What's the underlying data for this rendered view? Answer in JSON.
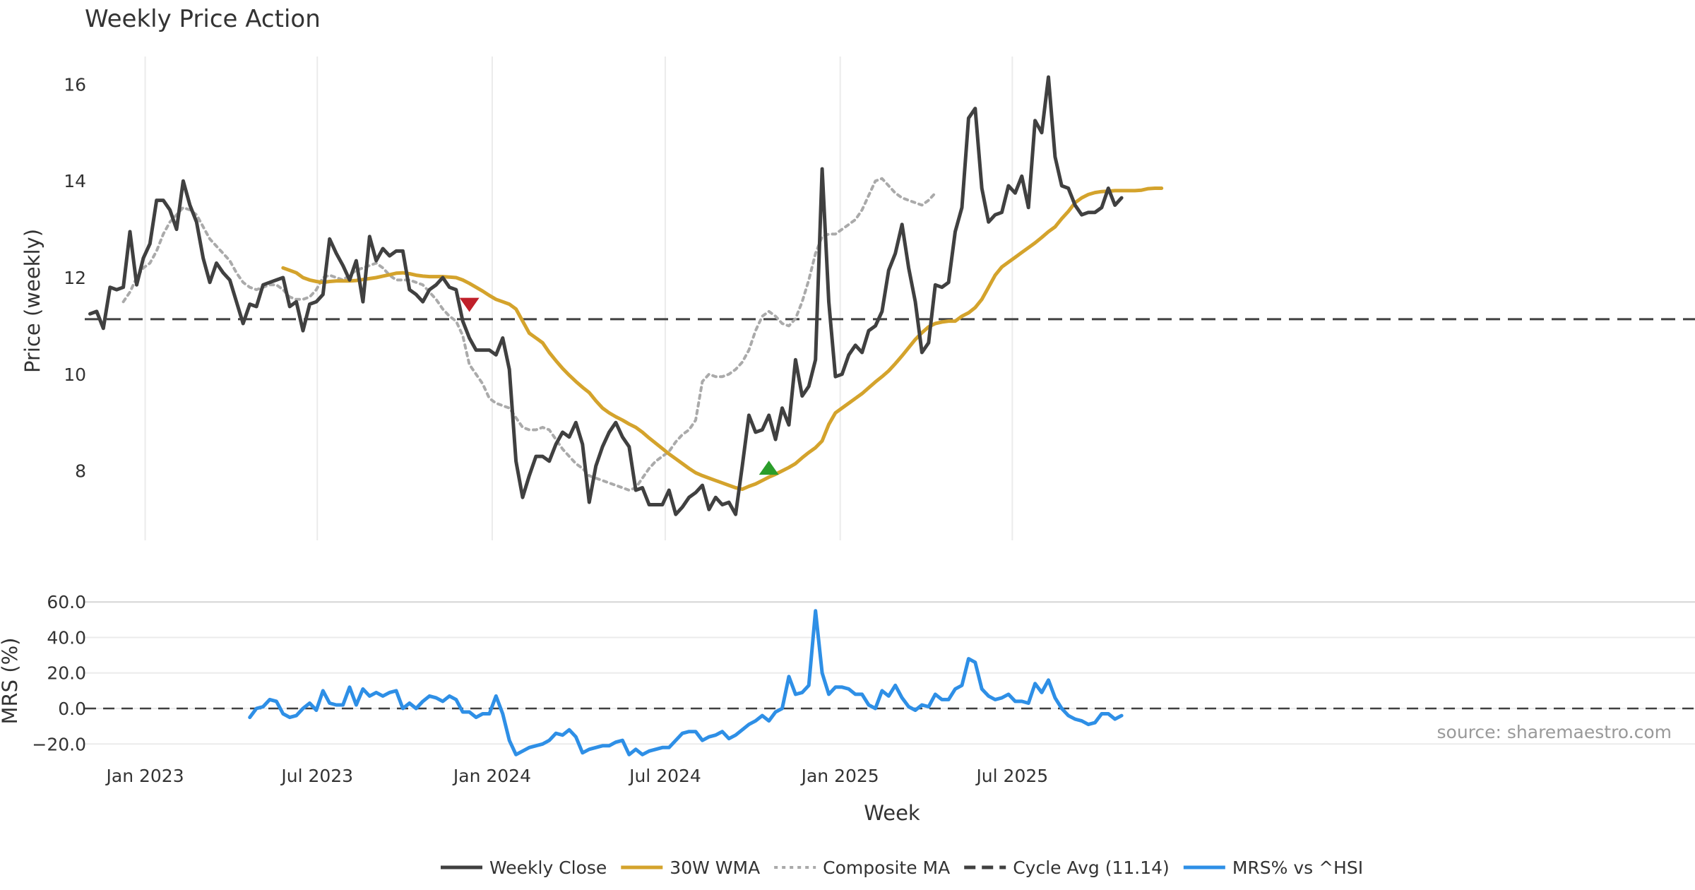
{
  "chart_data": [
    {
      "type": "line",
      "title": "Weekly Price Action",
      "xlabel": "",
      "ylabel": "Price (weekly)",
      "ylim": [
        6.4,
        16.7
      ],
      "yticks": [
        "8",
        "10",
        "12",
        "14",
        "16"
      ],
      "grid": "vertical",
      "cycle_avg": 11.14,
      "x_start": "2022-11-04",
      "x_step_days": 7,
      "series": [
        {
          "name": "Weekly Close",
          "color": "#404040",
          "style": "solid",
          "start_index": 0,
          "values": [
            11.25,
            11.3,
            10.95,
            11.8,
            11.75,
            11.8,
            12.95,
            11.85,
            12.4,
            12.7,
            13.6,
            13.6,
            13.4,
            13.0,
            14.0,
            13.5,
            13.15,
            12.4,
            11.9,
            12.3,
            12.1,
            11.95,
            11.5,
            11.05,
            11.45,
            11.4,
            11.85,
            11.9,
            11.95,
            12.0,
            11.4,
            11.5,
            10.9,
            11.45,
            11.5,
            11.65,
            12.8,
            12.5,
            12.25,
            11.95,
            12.35,
            11.5,
            12.85,
            12.35,
            12.6,
            12.45,
            12.55,
            12.55,
            11.75,
            11.65,
            11.5,
            11.75,
            11.85,
            12.0,
            11.8,
            11.75,
            11.1,
            10.75,
            10.5,
            10.5,
            10.5,
            10.4,
            10.75,
            10.1,
            8.2,
            7.45,
            7.9,
            8.3,
            8.3,
            8.2,
            8.55,
            8.8,
            8.7,
            9.0,
            8.55,
            7.35,
            8.1,
            8.5,
            8.8,
            9.0,
            8.7,
            8.5,
            7.6,
            7.65,
            7.3,
            7.3,
            7.3,
            7.6,
            7.1,
            7.25,
            7.45,
            7.55,
            7.7,
            7.2,
            7.45,
            7.3,
            7.35,
            7.1,
            8.1,
            9.15,
            8.8,
            8.85,
            9.15,
            8.65,
            9.3,
            8.95,
            10.3,
            9.55,
            9.75,
            10.3,
            14.25,
            11.5,
            9.95,
            10.0,
            10.4,
            10.6,
            10.45,
            10.9,
            11.0,
            11.3,
            12.15,
            12.5,
            13.1,
            12.2,
            11.5,
            10.45,
            10.65,
            11.85,
            11.8,
            11.9,
            12.95,
            13.45,
            15.3,
            15.5,
            13.85,
            13.15,
            13.3,
            13.35,
            13.9,
            13.75,
            14.1,
            13.45,
            15.25,
            15.0,
            16.15,
            14.5,
            13.9,
            13.85,
            13.5,
            13.3,
            13.35,
            13.35,
            13.45,
            13.85,
            13.5,
            13.65
          ]
        },
        {
          "name": "30W WMA",
          "color": "#D4A32C",
          "style": "solid",
          "start_index": 29,
          "values": [
            12.2,
            12.15,
            12.1,
            12.0,
            11.95,
            11.92,
            11.9,
            11.92,
            11.93,
            11.93,
            11.93,
            11.94,
            11.96,
            11.98,
            12.0,
            12.03,
            12.06,
            12.09,
            12.1,
            12.08,
            12.05,
            12.03,
            12.02,
            12.02,
            12.02,
            12.01,
            12.0,
            11.95,
            11.88,
            11.8,
            11.72,
            11.63,
            11.55,
            11.5,
            11.45,
            11.35,
            11.1,
            10.85,
            10.75,
            10.65,
            10.45,
            10.28,
            10.12,
            9.98,
            9.85,
            9.73,
            9.62,
            9.45,
            9.3,
            9.2,
            9.12,
            9.05,
            8.97,
            8.9,
            8.8,
            8.68,
            8.57,
            8.46,
            8.35,
            8.25,
            8.15,
            8.05,
            7.96,
            7.9,
            7.85,
            7.8,
            7.75,
            7.7,
            7.65,
            7.62,
            7.68,
            7.73,
            7.8,
            7.87,
            7.93,
            8.0,
            8.07,
            8.15,
            8.27,
            8.38,
            8.48,
            8.62,
            8.96,
            9.2,
            9.3,
            9.4,
            9.5,
            9.6,
            9.72,
            9.84,
            9.95,
            10.07,
            10.22,
            10.38,
            10.55,
            10.72,
            10.86,
            10.98,
            11.05,
            11.08,
            11.1,
            11.1,
            11.2,
            11.27,
            11.38,
            11.55,
            11.8,
            12.05,
            12.22,
            12.32,
            12.42,
            12.52,
            12.62,
            12.72,
            12.83,
            12.95,
            13.05,
            13.22,
            13.37,
            13.55,
            13.65,
            13.72,
            13.76,
            13.78,
            13.79,
            13.8,
            13.8,
            13.8,
            13.8,
            13.81,
            13.84,
            13.85,
            13.85
          ]
        },
        {
          "name": "Composite MA",
          "color": "#AAAAAA",
          "style": "dotted",
          "start_index": 5,
          "values": [
            11.5,
            11.7,
            12.0,
            12.2,
            12.3,
            12.55,
            12.9,
            13.15,
            13.3,
            13.45,
            13.4,
            13.3,
            13.05,
            12.8,
            12.65,
            12.5,
            12.35,
            12.1,
            11.9,
            11.8,
            11.75,
            11.8,
            11.85,
            11.85,
            11.75,
            11.6,
            11.55,
            11.55,
            11.6,
            11.75,
            12.0,
            12.05,
            12.0,
            11.95,
            12.05,
            12.15,
            12.2,
            12.25,
            12.3,
            12.2,
            12.05,
            11.95,
            11.95,
            11.95,
            11.9,
            11.85,
            11.7,
            11.55,
            11.35,
            11.2,
            11.1,
            10.8,
            10.2,
            10.0,
            9.8,
            9.5,
            9.4,
            9.35,
            9.3,
            9.1,
            8.9,
            8.85,
            8.85,
            8.9,
            8.85,
            8.65,
            8.45,
            8.3,
            8.15,
            8.05,
            7.9,
            7.85,
            7.8,
            7.75,
            7.7,
            7.65,
            7.6,
            7.65,
            7.85,
            8.05,
            8.2,
            8.3,
            8.4,
            8.6,
            8.75,
            8.85,
            9.05,
            9.85,
            10.0,
            9.95,
            9.95,
            10.0,
            10.1,
            10.25,
            10.5,
            10.9,
            11.2,
            11.3,
            11.2,
            11.05,
            11.0,
            11.15,
            11.5,
            11.95,
            12.5,
            12.85,
            12.9,
            12.9,
            13.0,
            13.1,
            13.2,
            13.4,
            13.7,
            14.0,
            14.05,
            13.9,
            13.75,
            13.65,
            13.6,
            13.55,
            13.5,
            13.6,
            13.75
          ]
        }
      ],
      "markers": [
        {
          "type": "sell",
          "shape": "triangle-down",
          "color": "#C0202A",
          "x_index": 57,
          "y": 11.45
        },
        {
          "type": "buy",
          "shape": "triangle-up",
          "color": "#2A9D2A",
          "x_index": 102,
          "y": 8.05
        }
      ]
    },
    {
      "type": "line",
      "xlabel": "Week",
      "ylabel": "MRS (%)",
      "ylim": [
        -25,
        62
      ],
      "yticks": [
        "60.0",
        "40.0",
        "20.0",
        "0.0",
        "−20.0"
      ],
      "xticks": [
        "Jan 2023",
        "Jul 2023",
        "Jan 2024",
        "Jul 2024",
        "Jan 2025",
        "Jul 2025"
      ],
      "xtick_dates": [
        "2023-01-01",
        "2023-07-01",
        "2024-01-01",
        "2024-07-01",
        "2025-01-01",
        "2025-07-01"
      ],
      "series": [
        {
          "name": "MRS% vs ^HSI",
          "color": "#2E8FE6",
          "style": "solid",
          "start_index": 24,
          "values": [
            -5,
            0,
            1,
            5,
            4,
            -3,
            -5,
            -4,
            0,
            3,
            -1,
            10,
            3,
            2,
            2,
            12,
            2,
            11,
            7,
            9,
            7,
            9,
            10,
            0,
            3,
            0,
            4,
            7,
            6,
            4,
            7,
            5,
            -2,
            -2,
            -5,
            -3,
            -3,
            7,
            -3,
            -18,
            -26,
            -24,
            -22,
            -21,
            -20,
            -18,
            -14,
            -15,
            -12,
            -16,
            -25,
            -23,
            -22,
            -21,
            -21,
            -19,
            -18,
            -26,
            -23,
            -26,
            -24,
            -23,
            -22,
            -22,
            -18,
            -14,
            -13,
            -13,
            -18,
            -16,
            -15,
            -13,
            -17,
            -15,
            -12,
            -9,
            -7,
            -4,
            -7,
            -2,
            0,
            18,
            8,
            9,
            13,
            55,
            20,
            8,
            12,
            12,
            11,
            8,
            8,
            2,
            0,
            10,
            7,
            13,
            6,
            1,
            -1,
            2,
            1,
            8,
            5,
            5,
            11,
            13,
            28,
            26,
            11,
            7,
            5,
            6,
            8,
            4,
            4,
            3,
            14,
            9,
            16,
            6,
            0,
            -4,
            -6,
            -7,
            -9,
            -8,
            -3,
            -3,
            -6,
            -4
          ]
        }
      ]
    }
  ],
  "legend": {
    "items": [
      {
        "label": "Weekly Close",
        "color": "#404040",
        "style": "solid"
      },
      {
        "label": "30W WMA",
        "color": "#D4A32C",
        "style": "solid"
      },
      {
        "label": "Composite MA",
        "color": "#AAAAAA",
        "style": "dotted"
      },
      {
        "label": "Cycle Avg (11.14)",
        "color": "#404040",
        "style": "dashed"
      },
      {
        "label": "MRS% vs ^HSI",
        "color": "#2E8FE6",
        "style": "solid"
      }
    ]
  },
  "source_label": "source: sharemaestro.com"
}
